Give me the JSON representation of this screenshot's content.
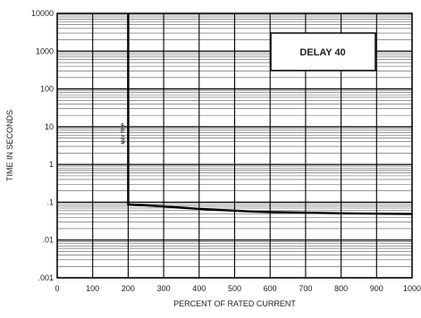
{
  "chart_data": {
    "type": "line",
    "xlabel": "PERCENT OF RATED CURRENT",
    "ylabel": "TIME IN SECONDS",
    "xlim": [
      0,
      1000
    ],
    "ylim": [
      0.001,
      10000
    ],
    "y_scale": "log",
    "x_ticks": [
      0,
      100,
      200,
      300,
      400,
      500,
      600,
      700,
      800,
      900,
      1000
    ],
    "x_tick_labels": [
      "0",
      "100",
      "200",
      "300",
      "400",
      "500",
      "600",
      "700",
      "800",
      "900",
      "1000"
    ],
    "y_ticks": [
      0.001,
      0.01,
      0.1,
      1,
      10,
      100,
      1000,
      10000
    ],
    "y_tick_labels": [
      ".001",
      ".01",
      ".1",
      "1",
      "10",
      "100",
      "1000",
      "10000"
    ],
    "grid": true,
    "legend_text": "DELAY 40",
    "legend_position": "top-right",
    "annotation": "MAY TRIP",
    "series": [
      {
        "x": [
          200,
          200,
          250,
          300,
          350,
          400,
          450,
          500,
          550,
          600,
          700,
          800,
          900,
          1000
        ],
        "y": [
          10000,
          0.088,
          0.083,
          0.078,
          0.072,
          0.067,
          0.063,
          0.06,
          0.057,
          0.055,
          0.053,
          0.051,
          0.05,
          0.049
        ]
      }
    ]
  }
}
